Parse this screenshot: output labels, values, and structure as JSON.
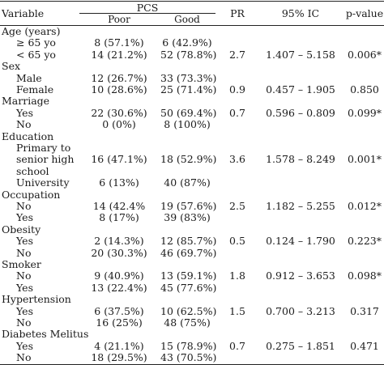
{
  "header": {
    "variable": "Variable",
    "pcs": "PCS",
    "poor": "Poor",
    "good": "Good",
    "pr": "PR",
    "ic": "95% IC",
    "pvalue": "p-value"
  },
  "rows": [
    {
      "label": "Age (years)"
    },
    {
      "sub": "≥ 65 yo",
      "poor": "8 (57.1%)",
      "good": "6 (42.9%)"
    },
    {
      "sub": "< 65 yo",
      "poor": "14 (21.2%)",
      "good": "52 (78.8%)",
      "pr": "2.7",
      "ic": "1.407 – 5.158",
      "pvalue": "0.006*"
    },
    {
      "label": "Sex"
    },
    {
      "sub": "Male",
      "poor": "12 (26.7%)",
      "good": "33 (73.3%)"
    },
    {
      "sub": "Female",
      "poor": "10 (28.6%)",
      "good": "25 (71.4%)",
      "pr": "0.9",
      "ic": "0.457 – 1.905",
      "pvalue": "0.850"
    },
    {
      "label": "Marriage"
    },
    {
      "sub": "Yes",
      "poor": "22 (30.6%)",
      "good": "50 (69.4%)",
      "pr": "0.7",
      "ic": "0.596 – 0.809",
      "pvalue": "0.099*"
    },
    {
      "sub": "No",
      "poor": "0 (0%)",
      "good": "8 (100%)"
    },
    {
      "label": "Education"
    },
    {
      "sub": "Primary to"
    },
    {
      "sub": "senior high",
      "poor": "16 (47.1%)",
      "good": "18 (52.9%)",
      "pr": "3.6",
      "ic": "1.578 – 8.249",
      "pvalue": "0.001*"
    },
    {
      "sub": "school"
    },
    {
      "sub": "University",
      "poor": "6 (13%)",
      "good": "40 (87%)"
    },
    {
      "label": "Occupation"
    },
    {
      "sub": "No",
      "poor": "14 (42.4%",
      "good": "19 (57.6%)",
      "pr": "2.5",
      "ic": "1.182 – 5.255",
      "pvalue": "0.012*"
    },
    {
      "sub": "Yes",
      "poor": "8 (17%)",
      "good": "39 (83%)"
    },
    {
      "label": "Obesity"
    },
    {
      "sub": "Yes",
      "poor": "2 (14.3%)",
      "good": "12 (85.7%)",
      "pr": "0.5",
      "ic": "0.124 – 1.790",
      "pvalue": "0.223*"
    },
    {
      "sub": "No",
      "poor": "20 (30.3%)",
      "good": "46 (69.7%)"
    },
    {
      "label": "Smoker"
    },
    {
      "sub": "No",
      "poor": "9 (40.9%)",
      "good": "13 (59.1%)",
      "pr": "1.8",
      "ic": "0.912 – 3.653",
      "pvalue": "0.098*"
    },
    {
      "sub": "Yes",
      "poor": "13 (22.4%)",
      "good": "45 (77.6%)"
    },
    {
      "label": "Hypertension"
    },
    {
      "sub": "Yes",
      "poor": "6 (37.5%)",
      "good": "10 (62.5%)",
      "pr": "1.5",
      "ic": "0.700 – 3.213",
      "pvalue": "0.317"
    },
    {
      "sub": "No",
      "poor": "16 (25%)",
      "good": "48 (75%)"
    },
    {
      "label": "Diabetes Melitus"
    },
    {
      "sub": "Yes",
      "poor": "4 (21.1%)",
      "good": "15 (78.9%)",
      "pr": "0.7",
      "ic": "0.275 – 1.851",
      "pvalue": "0.471"
    },
    {
      "sub": "No",
      "poor": "18 (29.5%)",
      "good": "43 (70.5%)"
    }
  ]
}
